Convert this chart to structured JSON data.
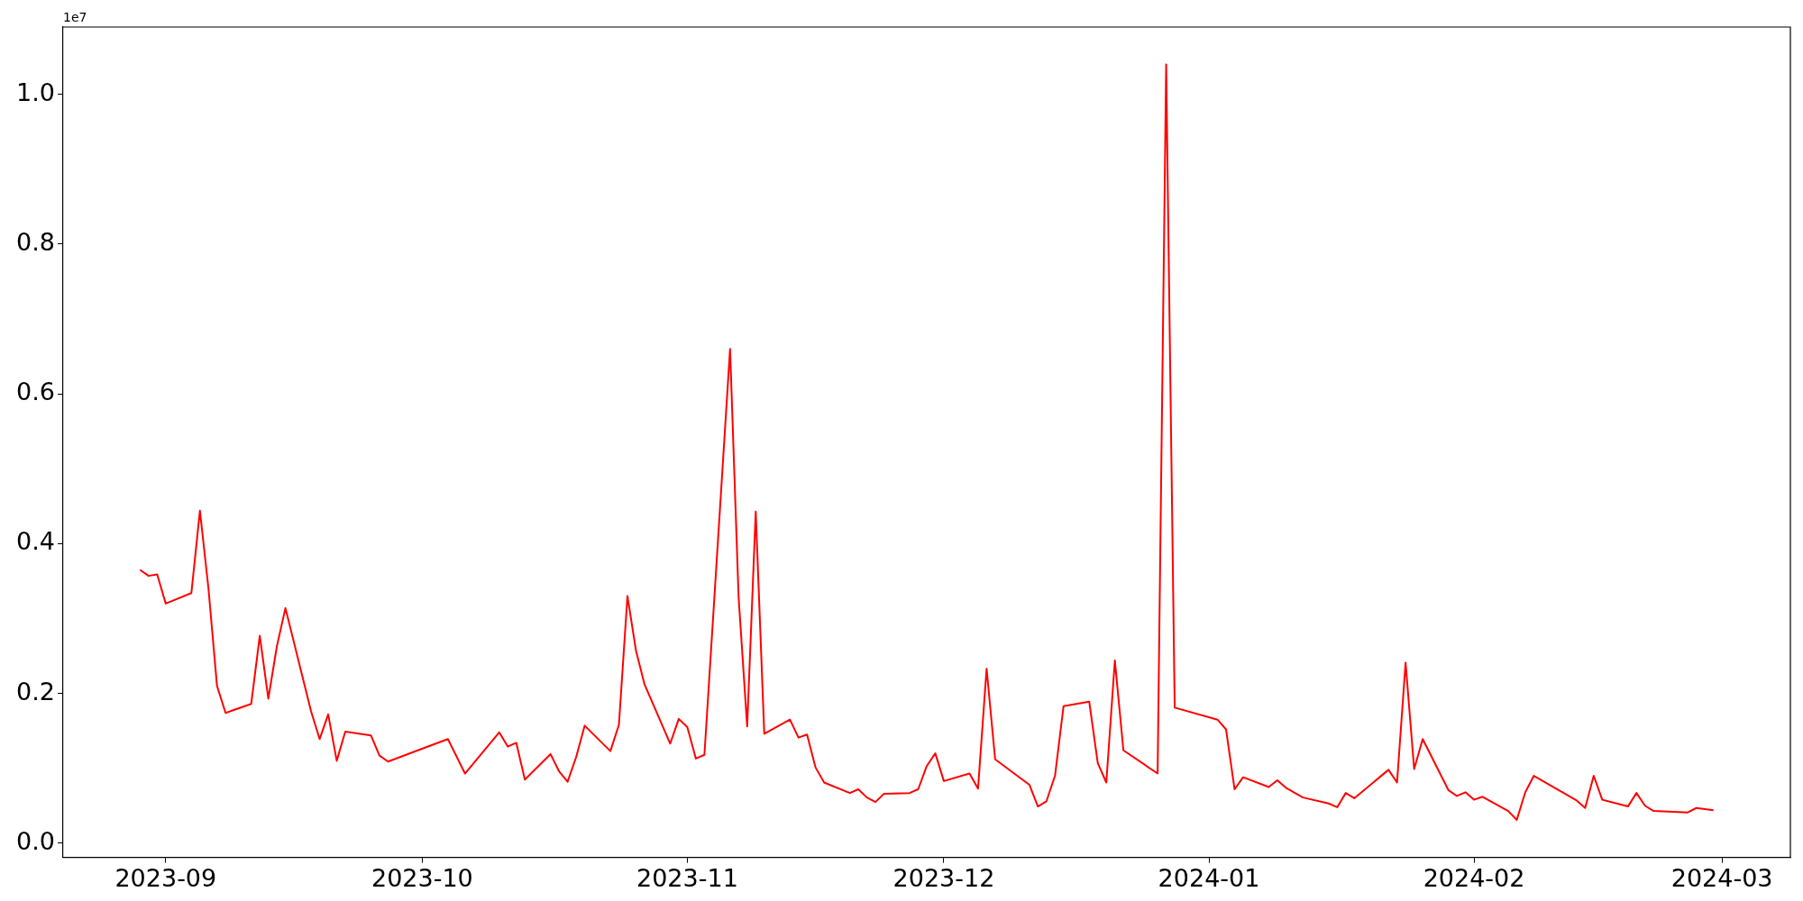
{
  "chart_data": {
    "type": "line",
    "annotations": [
      "1e7"
    ],
    "x": [
      "2023-08-29",
      "2023-08-30",
      "2023-08-31",
      "2023-09-01",
      "2023-09-04",
      "2023-09-05",
      "2023-09-06",
      "2023-09-07",
      "2023-09-08",
      "2023-09-11",
      "2023-09-12",
      "2023-09-13",
      "2023-09-14",
      "2023-09-15",
      "2023-09-18",
      "2023-09-19",
      "2023-09-20",
      "2023-09-21",
      "2023-09-22",
      "2023-09-25",
      "2023-09-26",
      "2023-09-27",
      "2023-10-04",
      "2023-10-06",
      "2023-10-10",
      "2023-10-11",
      "2023-10-12",
      "2023-10-13",
      "2023-10-16",
      "2023-10-17",
      "2023-10-18",
      "2023-10-19",
      "2023-10-20",
      "2023-10-23",
      "2023-10-24",
      "2023-10-25",
      "2023-10-26",
      "2023-10-27",
      "2023-10-30",
      "2023-10-31",
      "2023-11-01",
      "2023-11-02",
      "2023-11-03",
      "2023-11-06",
      "2023-11-07",
      "2023-11-08",
      "2023-11-09",
      "2023-11-10",
      "2023-11-13",
      "2023-11-14",
      "2023-11-15",
      "2023-11-16",
      "2023-11-17",
      "2023-11-20",
      "2023-11-21",
      "2023-11-22",
      "2023-11-23",
      "2023-11-24",
      "2023-11-27",
      "2023-11-28",
      "2023-11-29",
      "2023-11-30",
      "2023-12-01",
      "2023-12-04",
      "2023-12-05",
      "2023-12-06",
      "2023-12-07",
      "2023-12-11",
      "2023-12-12",
      "2023-12-13",
      "2023-12-14",
      "2023-12-15",
      "2023-12-18",
      "2023-12-19",
      "2023-12-20",
      "2023-12-21",
      "2023-12-22",
      "2023-12-26",
      "2023-12-27",
      "2023-12-28",
      "2024-01-02",
      "2024-01-03",
      "2024-01-04",
      "2024-01-05",
      "2024-01-08",
      "2024-01-09",
      "2024-01-10",
      "2024-01-12",
      "2024-01-15",
      "2024-01-16",
      "2024-01-17",
      "2024-01-18",
      "2024-01-22",
      "2024-01-23",
      "2024-01-24",
      "2024-01-25",
      "2024-01-26",
      "2024-01-29",
      "2024-01-30",
      "2024-01-31",
      "2024-02-01",
      "2024-02-02",
      "2024-02-05",
      "2024-02-06",
      "2024-02-07",
      "2024-02-08",
      "2024-02-13",
      "2024-02-14",
      "2024-02-15",
      "2024-02-16",
      "2024-02-19",
      "2024-02-20",
      "2024-02-21",
      "2024-02-22",
      "2024-02-26",
      "2024-02-27",
      "2024-02-29"
    ],
    "series": [
      {
        "color": "#ff0000",
        "values": [
          0.365,
          0.357,
          0.359,
          0.32,
          0.334,
          0.444,
          0.34,
          0.21,
          0.174,
          0.186,
          0.277,
          0.193,
          0.263,
          0.314,
          0.176,
          0.139,
          0.172,
          0.11,
          0.149,
          0.144,
          0.117,
          0.109,
          0.139,
          0.093,
          0.148,
          0.129,
          0.134,
          0.085,
          0.119,
          0.096,
          0.082,
          0.115,
          0.157,
          0.123,
          0.158,
          0.33,
          0.257,
          0.212,
          0.133,
          0.166,
          0.155,
          0.113,
          0.118,
          0.66,
          0.328,
          0.156,
          0.443,
          0.146,
          0.165,
          0.141,
          0.145,
          0.101,
          0.081,
          0.067,
          0.072,
          0.061,
          0.055,
          0.066,
          0.067,
          0.072,
          0.103,
          0.12,
          0.083,
          0.093,
          0.073,
          0.233,
          0.112,
          0.078,
          0.049,
          0.056,
          0.09,
          0.183,
          0.189,
          0.107,
          0.081,
          0.244,
          0.124,
          0.093,
          1.04,
          0.181,
          0.165,
          0.152,
          0.072,
          0.088,
          0.075,
          0.084,
          0.074,
          0.061,
          0.053,
          0.048,
          0.067,
          0.06,
          0.098,
          0.081,
          0.241,
          0.099,
          0.139,
          0.071,
          0.063,
          0.068,
          0.058,
          0.062,
          0.043,
          0.031,
          0.068,
          0.09,
          0.057,
          0.047,
          0.09,
          0.058,
          0.049,
          0.067,
          0.05,
          0.043,
          0.041,
          0.047,
          0.044
        ]
      }
    ],
    "xlim": [
      "2023-08-20",
      "2024-03-09"
    ],
    "xticks": [
      "2023-09",
      "2023-10",
      "2023-11",
      "2023-12",
      "2024-01",
      "2024-02",
      "2024-03"
    ],
    "ylim": [
      -0.019,
      1.09
    ],
    "yticks": [
      {
        "value": 0,
        "label": "0.0"
      },
      {
        "value": 0.2,
        "label": "0.2"
      },
      {
        "value": 0.4,
        "label": "0.4"
      },
      {
        "value": 0.6,
        "label": "0.6"
      },
      {
        "value": 0.8,
        "label": "0.8"
      },
      {
        "value": 1,
        "label": "1.0"
      }
    ],
    "grid": false,
    "legend": false,
    "marker": "none",
    "line_style": "solid"
  }
}
